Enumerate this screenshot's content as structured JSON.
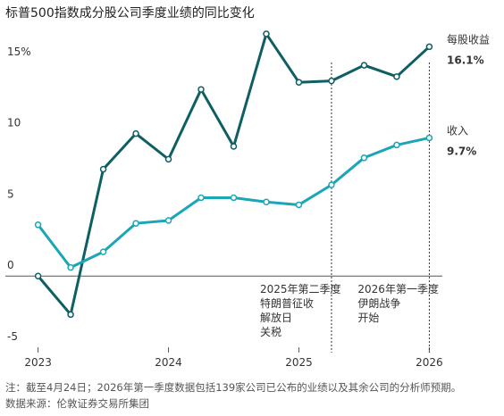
{
  "chart_data": {
    "type": "line",
    "title": "标普500指数成分股公司季度业绩的同比变化",
    "x": [
      2023,
      2023.25,
      2023.5,
      2023.75,
      2024,
      2024.25,
      2024.5,
      2024.75,
      2025,
      2025.25,
      2025.5,
      2025.75,
      2026
    ],
    "xlim": [
      2022.9,
      2026.1
    ],
    "xticks": [
      2023,
      2024,
      2025,
      2026
    ],
    "ylim": [
      -5.5,
      18
    ],
    "yticks": [
      {
        "value": 15,
        "label": "15%"
      },
      10,
      5,
      0,
      -5
    ],
    "series": [
      {
        "name": "每股收益",
        "color": "#0d5f63",
        "values": [
          0,
          -2.7,
          7.5,
          10.0,
          8.2,
          13.1,
          9.1,
          17.0,
          13.6,
          13.7,
          14.8,
          14.0,
          16.1
        ],
        "value_labels": [
          null,
          null,
          null,
          null,
          null,
          null,
          null,
          null,
          null,
          null,
          null,
          null,
          "16.1%"
        ]
      },
      {
        "name": "收入",
        "color": "#1aa6b7",
        "values": [
          3.6,
          0.6,
          1.7,
          3.7,
          3.9,
          5.5,
          5.5,
          5.2,
          5.0,
          6.4,
          8.3,
          9.2,
          9.7
        ],
        "value_labels": [
          null,
          null,
          null,
          null,
          null,
          null,
          null,
          null,
          null,
          null,
          null,
          null,
          "9.7%"
        ]
      }
    ],
    "annotations": [
      {
        "x": 2025.25,
        "lines": [
          "2025年第二季度",
          "特朗普征收",
          "解放日",
          "关税"
        ]
      },
      {
        "x": 2026,
        "lines": [
          "2026年第一季度",
          "伊朗战争",
          "开始"
        ]
      }
    ],
    "notes": [
      "注：截至4月24日；2026年第一季度数据包括139家公司已公布的业绩以及其余公司的分析师预期。",
      "数据来源：伦敦证券交易所集团"
    ]
  }
}
